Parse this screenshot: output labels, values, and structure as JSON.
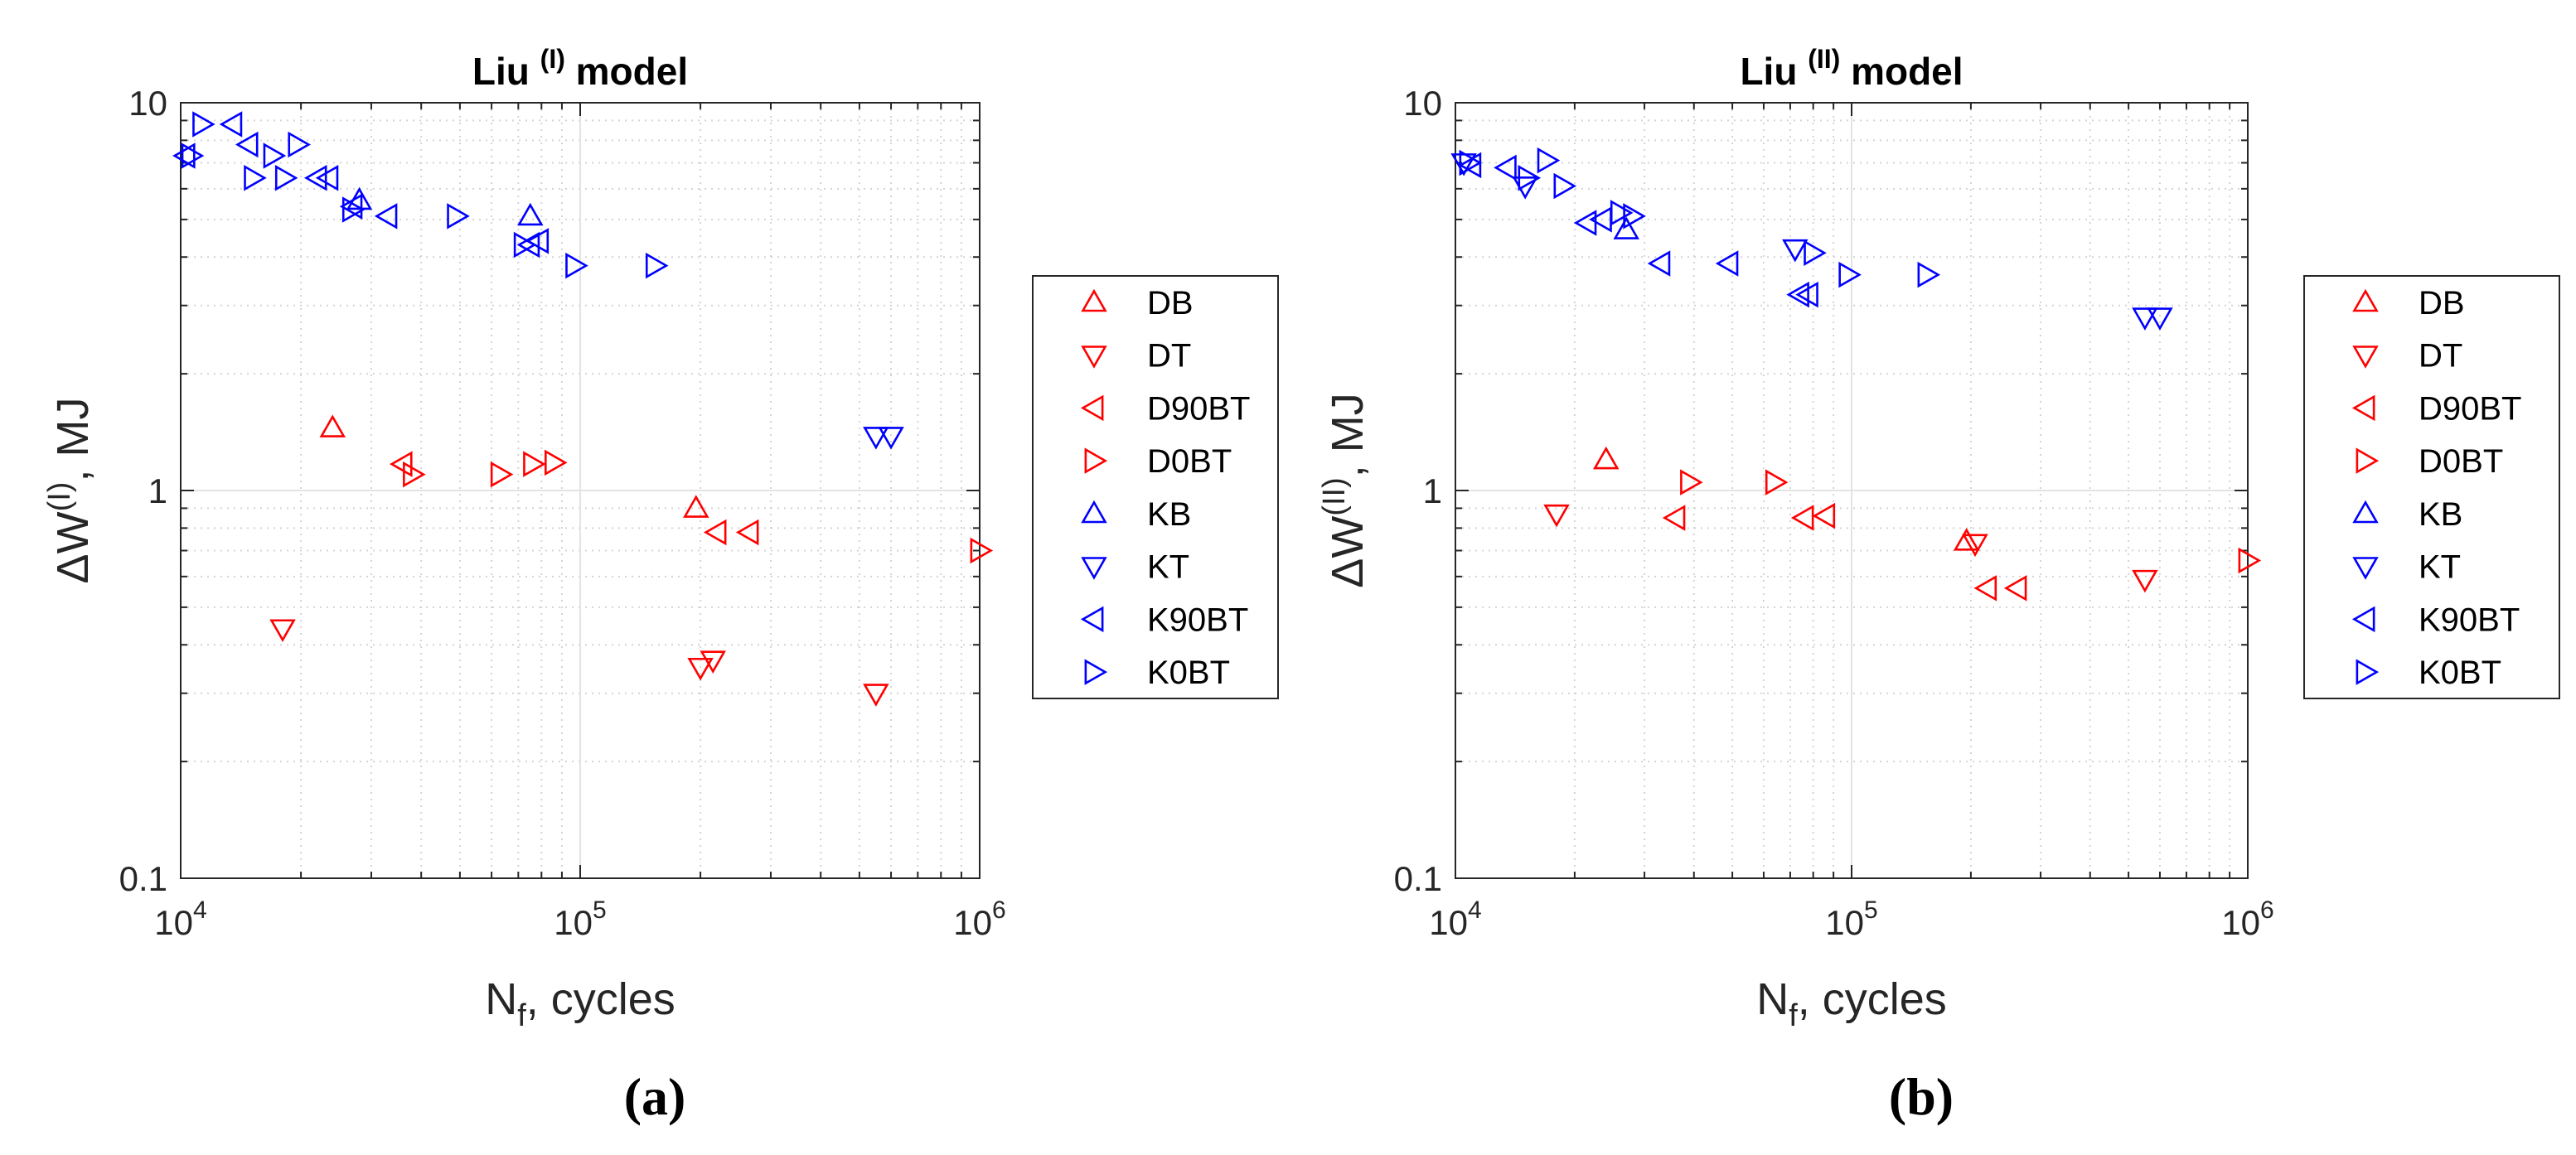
{
  "figure": {
    "panels": [
      {
        "label": "(a)"
      },
      {
        "label": "(b)"
      }
    ]
  },
  "chart_data": [
    {
      "type": "scatter",
      "title": "Liu (I) model",
      "title_parts": {
        "prefix": "Liu ",
        "superscript": "(I)",
        "suffix": " model"
      },
      "xlabel": "Nf, cycles",
      "xlabel_parts": {
        "base": "N",
        "subscript": "f",
        "suffix": ", cycles"
      },
      "ylabel": "ΔW (I), MJ",
      "ylabel_parts": {
        "base": "ΔW",
        "superscript": "(I)",
        "suffix": ", MJ"
      },
      "xscale": "log",
      "yscale": "log",
      "xlim": [
        10000,
        1000000
      ],
      "ylim": [
        0.1,
        10
      ],
      "xticks": [
        {
          "base": "10",
          "exp": "4"
        },
        {
          "base": "10",
          "exp": "5"
        },
        {
          "base": "10",
          "exp": "6"
        }
      ],
      "yticks": [
        "10",
        "1",
        "0.1"
      ],
      "grid": true,
      "legend_position": "outside-right",
      "series": [
        {
          "name": "DB",
          "marker": "triangle-up",
          "color": "#ff0000",
          "points": [
            [
              24000,
              1.45
            ],
            [
              195000,
              0.9
            ]
          ]
        },
        {
          "name": "DT",
          "marker": "triangle-down",
          "color": "#ff0000",
          "points": [
            [
              18000,
              0.44
            ],
            [
              200000,
              0.35
            ],
            [
              215000,
              0.365
            ],
            [
              550000,
              0.3
            ]
          ]
        },
        {
          "name": "D90BT",
          "marker": "triangle-left",
          "color": "#ff0000",
          "points": [
            [
              36000,
              1.17
            ],
            [
              220000,
              0.78
            ],
            [
              265000,
              0.78
            ]
          ]
        },
        {
          "name": "D0BT",
          "marker": "triangle-right",
          "color": "#ff0000",
          "points": [
            [
              38000,
              1.1
            ],
            [
              63000,
              1.1
            ],
            [
              76000,
              1.17
            ],
            [
              86000,
              1.18
            ],
            [
              1000000,
              0.7
            ]
          ]
        },
        {
          "name": "KB",
          "marker": "triangle-up",
          "color": "#0000ff",
          "points": [
            [
              28000,
              5.6
            ],
            [
              75000,
              5.1
            ]
          ]
        },
        {
          "name": "KT",
          "marker": "triangle-down",
          "color": "#0000ff",
          "points": [
            [
              550000,
              1.38
            ],
            [
              600000,
              1.38
            ]
          ]
        },
        {
          "name": "K90BT",
          "marker": "triangle-left",
          "color": "#0000ff",
          "points": [
            [
              10300,
              7.3
            ],
            [
              13500,
              8.8
            ],
            [
              14800,
              7.8
            ],
            [
              22000,
              6.4
            ],
            [
              23500,
              6.4
            ],
            [
              27000,
              5.4
            ],
            [
              33000,
              5.1
            ],
            [
              75000,
              4.3
            ],
            [
              79000,
              4.4
            ]
          ]
        },
        {
          "name": "K0BT",
          "marker": "triangle-right",
          "color": "#0000ff",
          "points": [
            [
              10600,
              7.3
            ],
            [
              11300,
              8.8
            ],
            [
              15200,
              6.4
            ],
            [
              17000,
              7.3
            ],
            [
              18200,
              6.4
            ],
            [
              19600,
              7.8
            ],
            [
              26800,
              5.3
            ],
            [
              49000,
              5.1
            ],
            [
              72000,
              4.3
            ],
            [
              97000,
              3.8
            ],
            [
              154000,
              3.8
            ]
          ]
        }
      ]
    },
    {
      "type": "scatter",
      "title": "Liu (II) model",
      "title_parts": {
        "prefix": "Liu ",
        "superscript": "(II)",
        "suffix": " model"
      },
      "xlabel": "Nf, cycles",
      "xlabel_parts": {
        "base": "N",
        "subscript": "f",
        "suffix": ", cycles"
      },
      "ylabel": "ΔW (II), MJ",
      "ylabel_parts": {
        "base": "ΔW",
        "superscript": "(II)",
        "suffix": ", MJ"
      },
      "xscale": "log",
      "yscale": "log",
      "xlim": [
        10000,
        1000000
      ],
      "ylim": [
        0.1,
        10
      ],
      "xticks": [
        {
          "base": "10",
          "exp": "4"
        },
        {
          "base": "10",
          "exp": "5"
        },
        {
          "base": "10",
          "exp": "6"
        }
      ],
      "yticks": [
        "10",
        "1",
        "0.1"
      ],
      "grid": true,
      "legend_position": "outside-right",
      "series": [
        {
          "name": "DB",
          "marker": "triangle-up",
          "color": "#ff0000",
          "points": [
            [
              24000,
              1.2
            ],
            [
              195000,
              0.74
            ]
          ]
        },
        {
          "name": "DT",
          "marker": "triangle-down",
          "color": "#ff0000",
          "points": [
            [
              18000,
              0.87
            ],
            [
              205000,
              0.73
            ],
            [
              550000,
              0.59
            ]
          ]
        },
        {
          "name": "D90BT",
          "marker": "triangle-left",
          "color": "#ff0000",
          "points": [
            [
              36000,
              0.85
            ],
            [
              76000,
              0.85
            ],
            [
              86000,
              0.86
            ],
            [
              220000,
              0.56
            ],
            [
              262000,
              0.56
            ]
          ]
        },
        {
          "name": "D0BT",
          "marker": "triangle-right",
          "color": "#ff0000",
          "points": [
            [
              39000,
              1.05
            ],
            [
              64000,
              1.05
            ],
            [
              1000000,
              0.66
            ]
          ]
        },
        {
          "name": "KB",
          "marker": "triangle-up",
          "color": "#0000ff",
          "points": [
            [
              27000,
              4.7
            ]
          ]
        },
        {
          "name": "KT",
          "marker": "triangle-down",
          "color": "#0000ff",
          "points": [
            [
              10500,
              7.0
            ],
            [
              15000,
              6.1
            ],
            [
              72000,
              4.2
            ],
            [
              550000,
              2.8
            ],
            [
              600000,
              2.8
            ]
          ]
        },
        {
          "name": "K90BT",
          "marker": "triangle-left",
          "color": "#0000ff",
          "points": [
            [
              11000,
              6.9
            ],
            [
              13500,
              6.8
            ],
            [
              21500,
              4.9
            ],
            [
              23500,
              5.0
            ],
            [
              33000,
              3.85
            ],
            [
              49000,
              3.85
            ],
            [
              74000,
              3.2
            ],
            [
              78000,
              3.2
            ]
          ]
        },
        {
          "name": "K0BT",
          "marker": "triangle-right",
          "color": "#0000ff",
          "points": [
            [
              10800,
              7.0
            ],
            [
              15200,
              6.4
            ],
            [
              17000,
              7.1
            ],
            [
              18700,
              6.1
            ],
            [
              26000,
              5.2
            ],
            [
              28000,
              5.1
            ],
            [
              80000,
              4.1
            ],
            [
              98000,
              3.6
            ],
            [
              155000,
              3.6
            ]
          ]
        }
      ]
    }
  ]
}
